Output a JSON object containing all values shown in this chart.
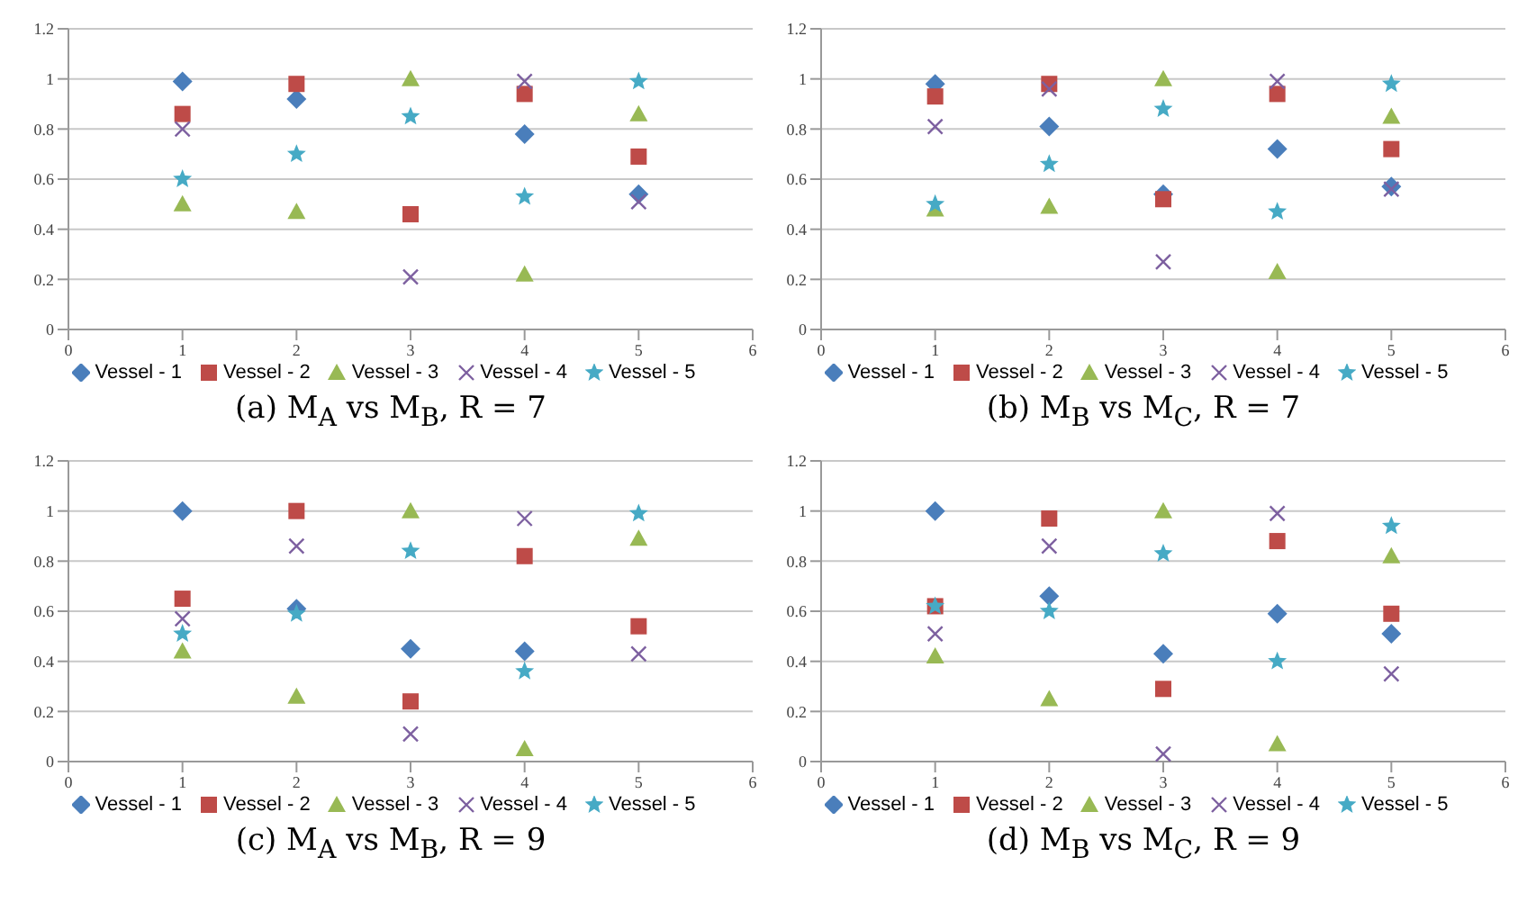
{
  "chart_data": [
    {
      "type": "scatter",
      "title": "(a) M$_{A}$ vs M$_{B}$, R = 7",
      "x": [
        1,
        2,
        3,
        4,
        5
      ],
      "xlim": [
        0,
        6
      ],
      "xticks": [
        0,
        1,
        2,
        3,
        4,
        5,
        6
      ],
      "ylim": [
        0,
        1.2
      ],
      "yticks": [
        0,
        0.2,
        0.4,
        0.6,
        0.8,
        1,
        1.2
      ],
      "grid": "y",
      "legend": "bottom",
      "series": [
        {
          "name": "Vessel - 1",
          "color": "#4a7ebb",
          "marker": "diamond",
          "values": [
            0.99,
            0.92,
            null,
            0.78,
            0.54
          ]
        },
        {
          "name": "Vessel - 2",
          "color": "#be4b48",
          "marker": "square",
          "values": [
            0.86,
            0.98,
            0.46,
            0.94,
            0.69
          ]
        },
        {
          "name": "Vessel - 3",
          "color": "#98b954",
          "marker": "triangle",
          "values": [
            0.5,
            0.47,
            1.0,
            0.22,
            0.86
          ]
        },
        {
          "name": "Vessel - 4",
          "color": "#7d60a0",
          "marker": "cross",
          "values": [
            0.8,
            null,
            0.21,
            0.99,
            0.51
          ]
        },
        {
          "name": "Vessel - 5",
          "color": "#46aac5",
          "marker": "star",
          "values": [
            0.6,
            0.7,
            0.85,
            0.53,
            0.99
          ]
        }
      ]
    },
    {
      "type": "scatter",
      "title": "(b) M$_{B}$ vs M$_{C}$, R = 7",
      "x": [
        1,
        2,
        3,
        4,
        5
      ],
      "xlim": [
        0,
        6
      ],
      "xticks": [
        0,
        1,
        2,
        3,
        4,
        5,
        6
      ],
      "ylim": [
        0,
        1.2
      ],
      "yticks": [
        0,
        0.2,
        0.4,
        0.6,
        0.8,
        1,
        1.2
      ],
      "grid": "y",
      "legend": "bottom",
      "series": [
        {
          "name": "Vessel - 1",
          "color": "#4a7ebb",
          "marker": "diamond",
          "values": [
            0.98,
            0.81,
            0.54,
            0.72,
            0.57
          ]
        },
        {
          "name": "Vessel - 2",
          "color": "#be4b48",
          "marker": "square",
          "values": [
            0.93,
            0.98,
            0.52,
            0.94,
            0.72
          ]
        },
        {
          "name": "Vessel - 3",
          "color": "#98b954",
          "marker": "triangle",
          "values": [
            0.48,
            0.49,
            1.0,
            0.23,
            0.85
          ]
        },
        {
          "name": "Vessel - 4",
          "color": "#7d60a0",
          "marker": "cross",
          "values": [
            0.81,
            0.96,
            0.27,
            0.99,
            0.56
          ]
        },
        {
          "name": "Vessel - 5",
          "color": "#46aac5",
          "marker": "star",
          "values": [
            0.5,
            0.66,
            0.88,
            0.47,
            0.98
          ]
        }
      ]
    },
    {
      "type": "scatter",
      "title": "(c) M$_{A}$ vs M$_{B}$, R = 9",
      "x": [
        1,
        2,
        3,
        4,
        5
      ],
      "xlim": [
        0,
        6
      ],
      "xticks": [
        0,
        1,
        2,
        3,
        4,
        5,
        6
      ],
      "ylim": [
        0,
        1.2
      ],
      "yticks": [
        0,
        0.2,
        0.4,
        0.6,
        0.8,
        1,
        1.2
      ],
      "grid": "y",
      "legend": "bottom",
      "series": [
        {
          "name": "Vessel - 1",
          "color": "#4a7ebb",
          "marker": "diamond",
          "values": [
            1.0,
            0.61,
            0.45,
            0.44,
            null
          ]
        },
        {
          "name": "Vessel - 2",
          "color": "#be4b48",
          "marker": "square",
          "values": [
            0.65,
            1.0,
            0.24,
            0.82,
            0.54
          ]
        },
        {
          "name": "Vessel - 3",
          "color": "#98b954",
          "marker": "triangle",
          "values": [
            0.44,
            0.26,
            1.0,
            0.05,
            0.89
          ]
        },
        {
          "name": "Vessel - 4",
          "color": "#7d60a0",
          "marker": "cross",
          "values": [
            0.57,
            0.86,
            0.11,
            0.97,
            0.43
          ]
        },
        {
          "name": "Vessel - 5",
          "color": "#46aac5",
          "marker": "star",
          "values": [
            0.51,
            0.59,
            0.84,
            0.36,
            0.99
          ]
        }
      ]
    },
    {
      "type": "scatter",
      "title": "(d) M$_{B}$ vs M$_{C}$, R = 9",
      "x": [
        1,
        2,
        3,
        4,
        5
      ],
      "xlim": [
        0,
        6
      ],
      "xticks": [
        0,
        1,
        2,
        3,
        4,
        5,
        6
      ],
      "ylim": [
        0,
        1.2
      ],
      "yticks": [
        0,
        0.2,
        0.4,
        0.6,
        0.8,
        1,
        1.2
      ],
      "grid": "y",
      "legend": "bottom",
      "series": [
        {
          "name": "Vessel - 1",
          "color": "#4a7ebb",
          "marker": "diamond",
          "values": [
            1.0,
            0.66,
            0.43,
            0.59,
            0.51
          ]
        },
        {
          "name": "Vessel - 2",
          "color": "#be4b48",
          "marker": "square",
          "values": [
            0.62,
            0.97,
            0.29,
            0.88,
            0.59
          ]
        },
        {
          "name": "Vessel - 3",
          "color": "#98b954",
          "marker": "triangle",
          "values": [
            0.42,
            0.25,
            1.0,
            0.07,
            0.82
          ]
        },
        {
          "name": "Vessel - 4",
          "color": "#7d60a0",
          "marker": "cross",
          "values": [
            0.51,
            0.86,
            0.03,
            0.99,
            0.35
          ]
        },
        {
          "name": "Vessel - 5",
          "color": "#46aac5",
          "marker": "star",
          "values": [
            0.62,
            0.6,
            0.83,
            0.4,
            0.94
          ]
        }
      ]
    }
  ]
}
